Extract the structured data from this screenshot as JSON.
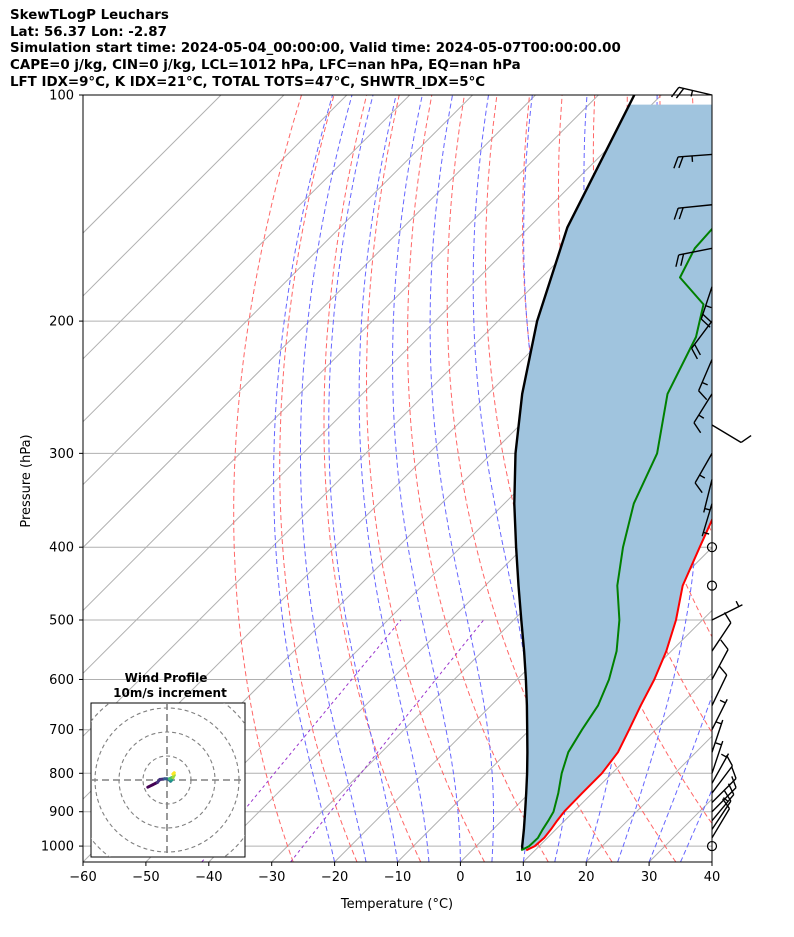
{
  "header": {
    "line1": "SkewTLogP Leuchars",
    "line2": "Lat: 56.37   Lon: -2.87",
    "line3": "Simulation start time: 2024-05-04_00:00:00, Valid time: 2024-05-07T00:00:00.00",
    "line4": "CAPE=0 j/kg, CIN=0 j/kg, LCL=1012 hPa, LFC=nan hPa, EQ=nan hPa",
    "line5": "LFT IDX=9°C, K IDX=21°C, TOTAL TOTS=47°C, SHWTR_IDX=5°C"
  },
  "chart_data": {
    "type": "line",
    "subtype": "skew-t log-p",
    "xlabel": "Temperature (°C)",
    "ylabel": "Pressure (hPa)",
    "xlim": [
      -60,
      40
    ],
    "ylim": [
      1050,
      100
    ],
    "yscale": "log",
    "x_ticks": [
      "−60",
      "−50",
      "−40",
      "−30",
      "−20",
      "−10",
      "0",
      "10",
      "20",
      "30",
      "40"
    ],
    "y_ticks": [
      "100",
      "200",
      "300",
      "400",
      "500",
      "600",
      "700",
      "800",
      "900",
      "1000"
    ],
    "grid": true,
    "skew": 45,
    "background_lines": {
      "isotherms_color": "#b0b0b0",
      "dry_adiabats_color": "#ff6666",
      "moist_adiabats_color": "#6666ff",
      "mixing_ratio_color": "#9933cc"
    },
    "series": [
      {
        "color": "#ff0000",
        "role": "temperature",
        "points": [
          [
            1013,
            8.6
          ],
          [
            1000,
            9.3
          ],
          [
            975,
            9.5
          ],
          [
            950,
            9.2
          ],
          [
            925,
            8.8
          ],
          [
            900,
            8.5
          ],
          [
            850,
            8.4
          ],
          [
            800,
            8.4
          ],
          [
            750,
            7.6
          ],
          [
            700,
            5.8
          ],
          [
            650,
            3.8
          ],
          [
            600,
            1.8
          ],
          [
            550,
            -0.8
          ],
          [
            500,
            -4.2
          ],
          [
            450,
            -8.6
          ],
          [
            400,
            -12.0
          ],
          [
            350,
            -15.8
          ],
          [
            300,
            -21.8
          ],
          [
            275,
            -25.8
          ],
          [
            250,
            -29.2
          ],
          [
            225,
            -30.8
          ],
          [
            200,
            -32.6
          ],
          [
            175,
            -33.9
          ],
          [
            150,
            -35.5
          ],
          [
            130,
            -38.0
          ],
          [
            115,
            -40.2
          ],
          [
            100,
            -43.4
          ]
        ]
      },
      {
        "color": "#008000",
        "role": "dewpoint",
        "points": [
          [
            1013,
            7.8
          ],
          [
            1000,
            8.4
          ],
          [
            975,
            8.5
          ],
          [
            950,
            7.9
          ],
          [
            925,
            7.4
          ],
          [
            900,
            6.8
          ],
          [
            850,
            4.6
          ],
          [
            800,
            2.0
          ],
          [
            750,
            -0.3
          ],
          [
            700,
            -1.7
          ],
          [
            650,
            -3.0
          ],
          [
            600,
            -5.4
          ],
          [
            550,
            -8.7
          ],
          [
            500,
            -13.2
          ],
          [
            450,
            -19.0
          ],
          [
            400,
            -24.2
          ],
          [
            350,
            -29.4
          ],
          [
            300,
            -33.7
          ],
          [
            250,
            -41.5
          ],
          [
            210,
            -46.0
          ],
          [
            190,
            -50.0
          ],
          [
            175,
            -58.0
          ],
          [
            160,
            -60.3
          ],
          [
            130,
            -61.5
          ],
          [
            100,
            -62.5
          ]
        ]
      },
      {
        "color": "#000000",
        "role": "parcel",
        "points": [
          [
            1013,
            8.0
          ],
          [
            1000,
            7.3
          ],
          [
            950,
            4.9
          ],
          [
            900,
            2.3
          ],
          [
            850,
            -0.5
          ],
          [
            800,
            -3.5
          ],
          [
            750,
            -6.8
          ],
          [
            700,
            -10.4
          ],
          [
            650,
            -14.3
          ],
          [
            600,
            -18.6
          ],
          [
            550,
            -23.4
          ],
          [
            500,
            -28.8
          ],
          [
            450,
            -34.7
          ],
          [
            400,
            -41.2
          ],
          [
            350,
            -48.4
          ],
          [
            300,
            -56.2
          ],
          [
            250,
            -64.6
          ],
          [
            200,
            -73.8
          ],
          [
            150,
            -83.9
          ],
          [
            100,
            -94.3
          ]
        ]
      }
    ],
    "fill_between_temperature_and_parcel": "#a0c4de",
    "wind_barbs": [
      {
        "p": 1000,
        "u": 0,
        "v": 0
      },
      {
        "p": 975,
        "u": -1.5,
        "v": -2.5
      },
      {
        "p": 950,
        "u": -2,
        "v": -3
      },
      {
        "p": 925,
        "u": -2.5,
        "v": -3
      },
      {
        "p": 900,
        "u": -2.5,
        "v": -2.5
      },
      {
        "p": 875,
        "u": -2,
        "v": -2
      },
      {
        "p": 850,
        "u": -1.5,
        "v": -2
      },
      {
        "p": 825,
        "u": -1,
        "v": -1.8
      },
      {
        "p": 800,
        "u": -0.5,
        "v": -1.5
      },
      {
        "p": 750,
        "u": -0.5,
        "v": -1.5
      },
      {
        "p": 700,
        "u": -1,
        "v": -2
      },
      {
        "p": 650,
        "u": -1.2,
        "v": -2.5
      },
      {
        "p": 600,
        "u": -1.5,
        "v": -2.8
      },
      {
        "p": 550,
        "u": -2,
        "v": -3
      },
      {
        "p": 500,
        "u": -1,
        "v": -0.5
      },
      {
        "p": 450,
        "u": 0,
        "v": 0
      },
      {
        "p": 400,
        "u": 0,
        "v": 0
      },
      {
        "p": 350,
        "u": 0.3,
        "v": 1
      },
      {
        "p": 325,
        "u": 0.5,
        "v": 2
      },
      {
        "p": 300,
        "u": 2,
        "v": 3.5
      },
      {
        "p": 275,
        "u": -2.5,
        "v": 1.5
      },
      {
        "p": 250,
        "u": 2.5,
        "v": 4
      },
      {
        "p": 225,
        "u": 1.5,
        "v": 3.5
      },
      {
        "p": 200,
        "u": 3,
        "v": 4
      },
      {
        "p": 180,
        "u": 2,
        "v": 6
      },
      {
        "p": 160,
        "u": 5,
        "v": 1
      },
      {
        "p": 140,
        "u": 5,
        "v": 0.5
      },
      {
        "p": 120,
        "u": 7,
        "v": 0.5
      },
      {
        "p": 100,
        "u": 6.5,
        "v": -1.5
      }
    ],
    "inset": {
      "title": "Wind Profile",
      "subtitle": "10m/s increment",
      "ring_increment_ms": 10,
      "hodograph": [
        [
          -8,
          -3
        ],
        [
          -6,
          -2
        ],
        [
          -4,
          -1
        ],
        [
          -3,
          0.2
        ],
        [
          -1,
          0.5
        ],
        [
          0,
          0.5
        ],
        [
          1,
          0
        ],
        [
          1.5,
          -0.5
        ],
        [
          2,
          0
        ],
        [
          1.5,
          0.5
        ],
        [
          1,
          0.5
        ],
        [
          2,
          1
        ],
        [
          2.5,
          1
        ],
        [
          3,
          2
        ],
        [
          2.5,
          2.5
        ],
        [
          3,
          3
        ],
        [
          2.5,
          2.5
        ]
      ],
      "hodograph_colors": [
        "#440154",
        "#46327e",
        "#365c8d",
        "#277f8e",
        "#1fa187",
        "#4ac16d",
        "#a0da39",
        "#fde725"
      ]
    }
  }
}
